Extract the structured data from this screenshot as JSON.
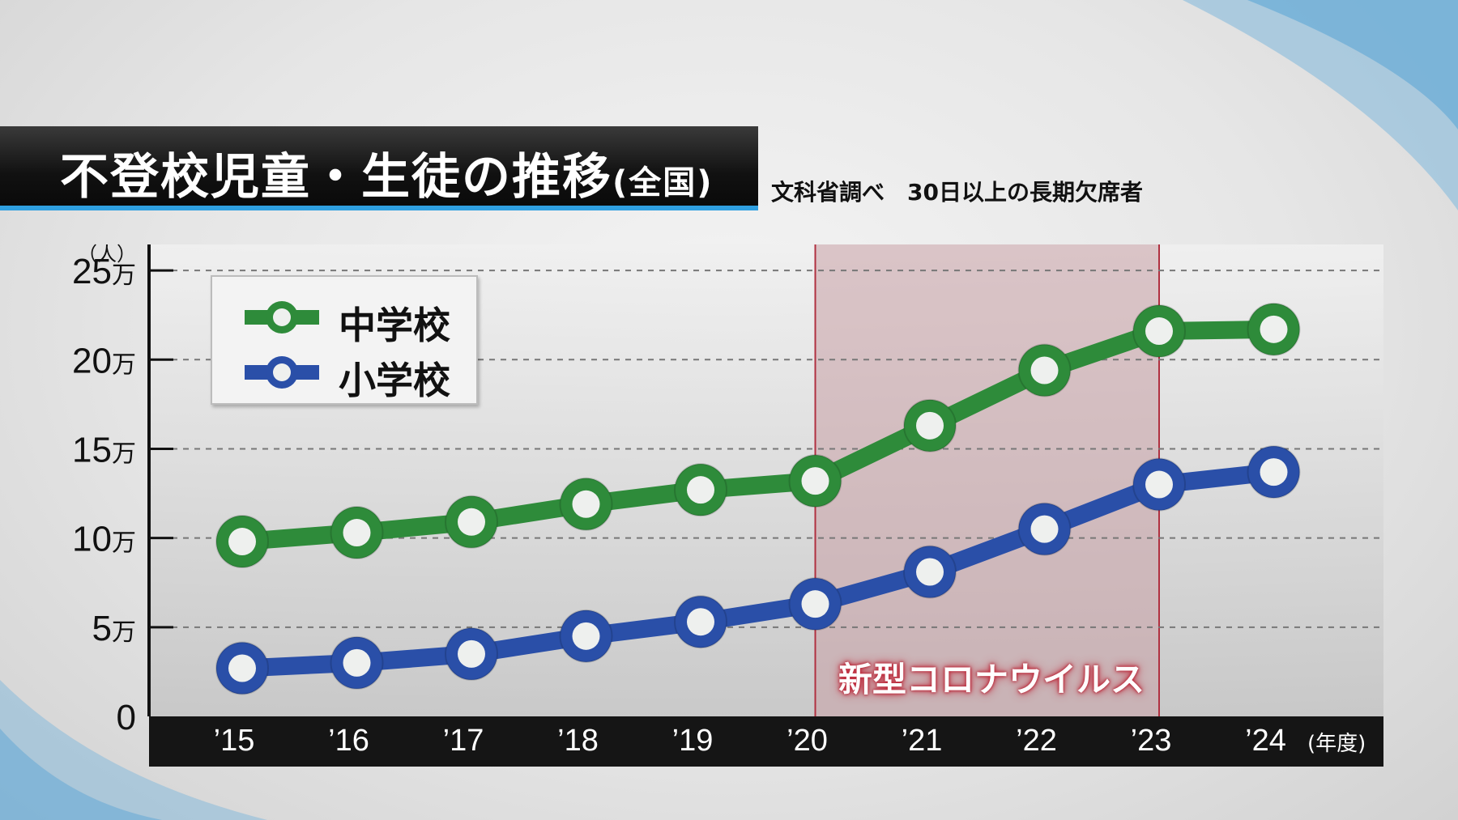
{
  "title": {
    "main": "不登校児童・生徒の推移",
    "sub": "(全国)"
  },
  "source_note": "文科省調べ　30日以上の長期欠席者",
  "colors": {
    "junior_high": "#2e8b3a",
    "elementary": "#2a4fa8",
    "covid_band": "#c8a0a6",
    "axis_bar": "#151515"
  },
  "chart_data": {
    "type": "line",
    "y_unit_label": "（人）",
    "x_unit_label": "(年度)",
    "categories": [
      "'15",
      "'16",
      "'17",
      "'18",
      "'19",
      "'20",
      "'21",
      "'22",
      "'23",
      "'24"
    ],
    "ylim": [
      0,
      280000
    ],
    "yticks": [
      {
        "value": 0,
        "label": "0"
      },
      {
        "value": 50000,
        "label": "5万"
      },
      {
        "value": 100000,
        "label": "10万"
      },
      {
        "value": 150000,
        "label": "15万"
      },
      {
        "value": 200000,
        "label": "20万"
      },
      {
        "value": 250000,
        "label": "25万"
      }
    ],
    "grid": true,
    "legend_position": "top-left",
    "series": [
      {
        "name": "中学校",
        "key": "junior_high",
        "values": [
          98000,
          103000,
          109000,
          119000,
          127000,
          132000,
          163000,
          194000,
          216000,
          217000
        ]
      },
      {
        "name": "小学校",
        "key": "elementary",
        "values": [
          27000,
          30000,
          35000,
          45000,
          53000,
          63000,
          81000,
          105000,
          130000,
          137000
        ]
      }
    ],
    "highlight": {
      "label": "新型コロナウイルス",
      "from": "'20",
      "to": "'23"
    }
  }
}
